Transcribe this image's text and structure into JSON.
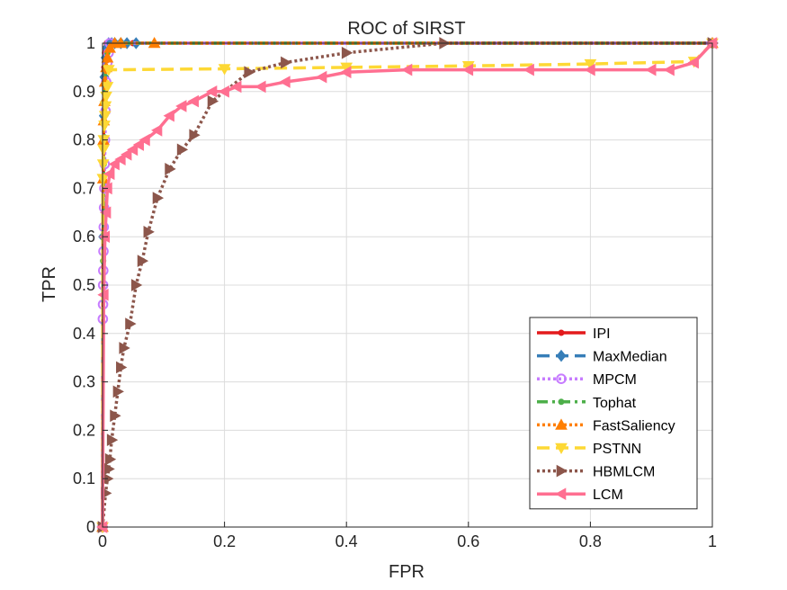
{
  "chart_data": {
    "type": "line",
    "title": "ROC of SIRST",
    "xlabel": "FPR",
    "ylabel": "TPR",
    "xlim": [
      0,
      1
    ],
    "ylim": [
      0,
      1
    ],
    "x_ticks": [
      "0",
      "0.2",
      "0.4",
      "0.6",
      "0.8",
      "1"
    ],
    "y_ticks": [
      "0",
      "0.1",
      "0.2",
      "0.3",
      "0.4",
      "0.5",
      "0.6",
      "0.7",
      "0.8",
      "0.9",
      "1"
    ],
    "grid": true,
    "legend_position": "bottom-right",
    "series": [
      {
        "name": "IPI",
        "color": "#e31a1c",
        "line_style": "solid",
        "marker": "dot",
        "x": [
          0,
          0.001,
          0.002,
          0.003,
          0.004,
          0.005,
          0.007,
          0.01,
          0.02,
          0.05,
          1.0
        ],
        "y": [
          0,
          0.6,
          0.85,
          0.95,
          0.98,
          0.99,
          1.0,
          1.0,
          1.0,
          1.0,
          1.0
        ]
      },
      {
        "name": "MaxMedian",
        "color": "#377eb8",
        "line_style": "dashed",
        "marker": "diamond",
        "x": [
          0,
          0.001,
          0.002,
          0.003,
          0.005,
          0.007,
          0.01,
          0.015,
          0.02,
          0.03,
          0.04,
          0.055,
          1.0
        ],
        "y": [
          0,
          0.6,
          0.85,
          0.93,
          0.97,
          0.99,
          1.0,
          1.0,
          1.0,
          1.0,
          1.0,
          1.0,
          1.0
        ]
      },
      {
        "name": "MPCM",
        "color": "#c77cff",
        "line_style": "dotted",
        "marker": "circle",
        "x": [
          0,
          0.0005,
          0.0008,
          0.001,
          0.0012,
          0.0015,
          0.002,
          0.0025,
          0.003,
          0.0035,
          0.004,
          0.005,
          0.006,
          0.008,
          0.01,
          0.012,
          1.0
        ],
        "y": [
          0,
          0.43,
          0.46,
          0.5,
          0.53,
          0.57,
          0.62,
          0.66,
          0.7,
          0.75,
          0.8,
          0.86,
          0.92,
          0.96,
          0.98,
          1.0,
          1.0
        ]
      },
      {
        "name": "Tophat",
        "color": "#4daf4a",
        "line_style": "dashdot",
        "marker": "dot",
        "x": [
          0,
          0.001,
          0.002,
          0.003,
          0.005,
          0.008,
          0.012,
          0.02,
          1.0
        ],
        "y": [
          0,
          0.55,
          0.75,
          0.88,
          0.95,
          0.98,
          0.99,
          1.0,
          1.0
        ]
      },
      {
        "name": "FastSaliency",
        "color": "#ff7f00",
        "line_style": "dotted",
        "marker": "triangle-up",
        "x": [
          0,
          0.001,
          0.0015,
          0.002,
          0.003,
          0.004,
          0.006,
          0.008,
          0.012,
          0.02,
          0.03,
          0.085,
          1.0
        ],
        "y": [
          0,
          0.72,
          0.8,
          0.84,
          0.88,
          0.92,
          0.95,
          0.97,
          0.99,
          1.0,
          1.0,
          1.0,
          1.0
        ]
      },
      {
        "name": "PSTNN",
        "color": "#fdd835",
        "line_style": "dashed",
        "marker": "triangle-down",
        "x": [
          0,
          0.0005,
          0.001,
          0.0015,
          0.002,
          0.003,
          0.004,
          0.005,
          0.006,
          0.008,
          0.01,
          0.2,
          0.4,
          0.6,
          0.8,
          0.97,
          1.0
        ],
        "y": [
          0,
          0.72,
          0.75,
          0.78,
          0.8,
          0.83,
          0.85,
          0.87,
          0.89,
          0.91,
          0.945,
          0.947,
          0.95,
          0.953,
          0.957,
          0.962,
          1.0
        ]
      },
      {
        "name": "HBMLCM",
        "color": "#8c564b",
        "line_style": "dotted",
        "marker": "triangle-right",
        "x": [
          0,
          0.005,
          0.008,
          0.01,
          0.012,
          0.015,
          0.02,
          0.025,
          0.03,
          0.035,
          0.045,
          0.055,
          0.065,
          0.075,
          0.09,
          0.11,
          0.13,
          0.15,
          0.18,
          0.24,
          0.3,
          0.4,
          0.56,
          1.0
        ],
        "y": [
          0,
          0.07,
          0.1,
          0.12,
          0.14,
          0.18,
          0.23,
          0.28,
          0.33,
          0.37,
          0.42,
          0.5,
          0.55,
          0.61,
          0.68,
          0.74,
          0.78,
          0.81,
          0.88,
          0.94,
          0.96,
          0.98,
          1.0,
          1.0
        ]
      },
      {
        "name": "LCM",
        "color": "#ff6f91",
        "line_style": "solid",
        "marker": "triangle-left",
        "x": [
          0,
          0.002,
          0.004,
          0.006,
          0.008,
          0.012,
          0.02,
          0.03,
          0.04,
          0.05,
          0.06,
          0.07,
          0.09,
          0.11,
          0.13,
          0.15,
          0.18,
          0.2,
          0.22,
          0.26,
          0.3,
          0.36,
          0.4,
          0.5,
          0.6,
          0.7,
          0.8,
          0.9,
          0.93,
          0.97,
          1.0
        ],
        "y": [
          0,
          0.48,
          0.6,
          0.65,
          0.7,
          0.73,
          0.75,
          0.76,
          0.77,
          0.78,
          0.79,
          0.8,
          0.82,
          0.85,
          0.87,
          0.88,
          0.9,
          0.9,
          0.91,
          0.91,
          0.92,
          0.93,
          0.94,
          0.945,
          0.945,
          0.945,
          0.945,
          0.945,
          0.945,
          0.96,
          1.0
        ]
      }
    ]
  }
}
